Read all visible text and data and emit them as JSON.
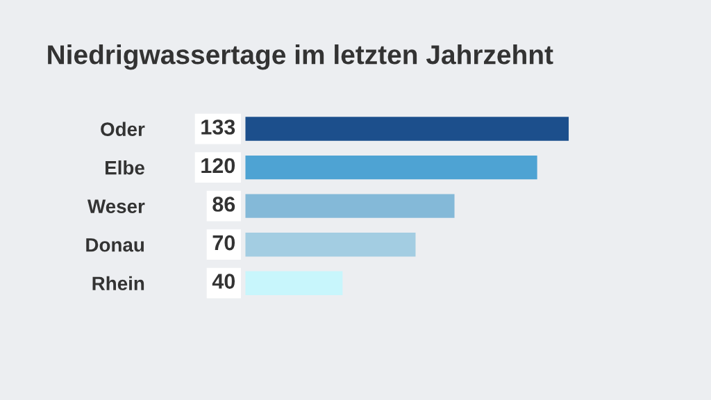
{
  "chart_data": {
    "type": "bar",
    "orientation": "horizontal",
    "title": "Niedrigwassertage im letzten Jahrzehnt",
    "categories": [
      "Oder",
      "Elbe",
      "Weser",
      "Donau",
      "Rhein"
    ],
    "values": [
      133,
      120,
      86,
      70,
      40
    ],
    "colors": [
      "#1c4f8c",
      "#4ea3d3",
      "#84b9d8",
      "#a3cde2",
      "#c8f6fc"
    ],
    "data_labels": true,
    "grid": false,
    "legend": false
  }
}
